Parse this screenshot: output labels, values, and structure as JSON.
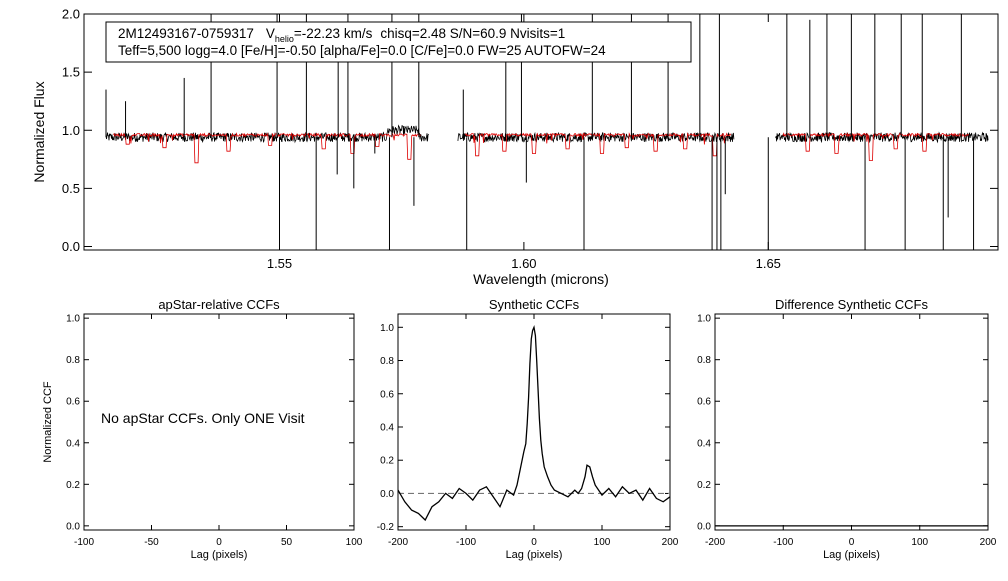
{
  "top_plot": {
    "info_line1": {
      "star_id": "2M12493167-0759317",
      "v_symbol": "V",
      "v_subscript": "helio",
      "v_value": "=-22.23 km/s",
      "rest": "chisq=2.48  S/N=60.9  Nvisits=1"
    },
    "info_line2": "Teff=5,500 logg=4.0 [Fe/H]=-0.50 [alpha/Fe]=0.0 [C/Fe]=0.0 FW=25 AUTOFW=24"
  },
  "colors": {
    "observed": "#000000",
    "model": "#dd0000",
    "zero_line": "#777777"
  },
  "chart_data": [
    {
      "type": "line",
      "xlabel": "Wavelength (microns)",
      "ylabel": "Normalized Flux",
      "xlim": [
        1.51,
        1.697
      ],
      "ylim": [
        -0.03,
        2.0
      ],
      "xticks": [
        1.55,
        1.6,
        1.65
      ],
      "xtick_labels": [
        "1.55",
        "1.60",
        "1.65"
      ],
      "yticks": [
        0.0,
        0.5,
        1.0,
        1.5,
        2.0
      ],
      "ytick_labels": [
        "0.0",
        "0.5",
        "1.0",
        "1.5",
        "2.0"
      ],
      "series": [
        {
          "segments": [
            [
              1.5145,
              1.5805
            ],
            [
              1.5865,
              1.643
            ],
            [
              1.6515,
              1.695
            ]
          ],
          "level": 0.94,
          "noise": 0.025,
          "spikes_up": [
            [
              1.5145,
              1.35
            ],
            [
              1.5185,
              1.25
            ],
            [
              1.5305,
              1.45
            ],
            [
              1.536,
              2.0
            ],
            [
              1.5495,
              2.0
            ],
            [
              1.5555,
              2.0
            ],
            [
              1.562,
              1.6
            ],
            [
              1.564,
              2.0
            ],
            [
              1.573,
              2.0
            ],
            [
              1.5785,
              2.0
            ],
            [
              1.5876,
              1.35
            ],
            [
              1.5963,
              1.6
            ],
            [
              1.5995,
              2.0
            ],
            [
              1.614,
              2.0
            ],
            [
              1.622,
              2.0
            ],
            [
              1.6295,
              2.0
            ],
            [
              1.636,
              2.0
            ],
            [
              1.64,
              2.0
            ],
            [
              1.6538,
              2.0
            ],
            [
              1.6585,
              1.95
            ],
            [
              1.662,
              2.0
            ],
            [
              1.667,
              2.0
            ],
            [
              1.6718,
              2.0
            ],
            [
              1.6772,
              2.0
            ],
            [
              1.6815,
              2.0
            ],
            [
              1.6895,
              2.0
            ]
          ],
          "spikes_down": [
            [
              1.55,
              -0.03
            ],
            [
              1.5575,
              -0.03
            ],
            [
              1.5618,
              0.62
            ],
            [
              1.5652,
              0.5
            ],
            [
              1.5695,
              0.8
            ],
            [
              1.5725,
              -0.03
            ],
            [
              1.5775,
              0.35
            ],
            [
              1.5883,
              -0.03
            ],
            [
              1.6005,
              0.55
            ],
            [
              1.6123,
              -0.03
            ],
            [
              1.6385,
              -0.03
            ],
            [
              1.6395,
              -0.03
            ],
            [
              1.6403,
              -0.03
            ],
            [
              1.6412,
              0.45
            ],
            [
              1.65,
              -0.03
            ],
            [
              1.6698,
              -0.03
            ],
            [
              1.678,
              -0.03
            ],
            [
              1.6858,
              -0.03
            ],
            [
              1.6868,
              0.25
            ],
            [
              1.692,
              -0.03
            ]
          ],
          "bump": {
            "from": 1.572,
            "to": 1.5785,
            "height": 0.06
          }
        },
        {
          "segments": [
            [
              1.516,
              1.579
            ],
            [
              1.588,
              1.6425
            ],
            [
              1.653,
              1.691
            ]
          ],
          "level": 0.96,
          "noise": 0.012,
          "lines": [
            [
              1.519,
              0.88
            ],
            [
              1.5265,
              0.85
            ],
            [
              1.533,
              0.72
            ],
            [
              1.5395,
              0.82
            ],
            [
              1.548,
              0.87
            ],
            [
              1.559,
              0.84
            ],
            [
              1.565,
              0.8
            ],
            [
              1.57,
              0.86
            ],
            [
              1.5765,
              0.75
            ],
            [
              1.5905,
              0.78
            ],
            [
              1.596,
              0.82
            ],
            [
              1.602,
              0.8
            ],
            [
              1.609,
              0.84
            ],
            [
              1.616,
              0.8
            ],
            [
              1.621,
              0.85
            ],
            [
              1.627,
              0.82
            ],
            [
              1.633,
              0.84
            ],
            [
              1.639,
              0.78
            ],
            [
              1.658,
              0.82
            ],
            [
              1.664,
              0.8
            ],
            [
              1.671,
              0.74
            ],
            [
              1.676,
              0.84
            ],
            [
              1.682,
              0.82
            ]
          ]
        }
      ]
    },
    {
      "type": "line",
      "title": "apStar-relative CCFs",
      "xlabel": "Lag (pixels)",
      "ylabel": "Normalized CCF",
      "xlim": [
        -100,
        100
      ],
      "ylim": [
        -0.02,
        1.02
      ],
      "xticks": [
        -100,
        -50,
        0,
        50,
        100
      ],
      "xtick_labels": [
        "-100",
        "-50",
        "0",
        "50",
        "100"
      ],
      "yticks": [
        0.0,
        0.2,
        0.4,
        0.6,
        0.8,
        1.0
      ],
      "ytick_labels": [
        "0.0",
        "0.2",
        "0.4",
        "0.6",
        "0.8",
        "1.0"
      ],
      "annotation": "No apStar CCFs.  Only ONE Visit",
      "series": []
    },
    {
      "type": "line",
      "title": "Synthetic CCFs",
      "xlabel": "Lag (pixels)",
      "xlim": [
        -200,
        200
      ],
      "ylim": [
        -0.22,
        1.08
      ],
      "xticks": [
        -200,
        -100,
        0,
        100,
        200
      ],
      "xtick_labels": [
        "-200",
        "-100",
        "0",
        "100",
        "200"
      ],
      "yticks": [
        -0.2,
        0.0,
        0.2,
        0.4,
        0.6,
        0.8,
        1.0
      ],
      "ytick_labels": [
        "-0.2",
        "0.0",
        "0.2",
        "0.4",
        "0.6",
        "0.8",
        "1.0"
      ],
      "reference_line": 0.0,
      "series": [
        {
          "x": [
            -200,
            -190,
            -180,
            -170,
            -160,
            -150,
            -140,
            -130,
            -120,
            -110,
            -100,
            -90,
            -80,
            -70,
            -60,
            -50,
            -40,
            -30,
            -25,
            -20,
            -15,
            -12,
            -10,
            -8,
            -6,
            -4,
            -2,
            0,
            2,
            4,
            6,
            8,
            10,
            12,
            15,
            20,
            25,
            30,
            40,
            50,
            60,
            65,
            70,
            75,
            78,
            82,
            86,
            90,
            95,
            100,
            110,
            120,
            130,
            140,
            150,
            160,
            170,
            180,
            190,
            200
          ],
          "y": [
            0.02,
            -0.05,
            -0.1,
            -0.12,
            -0.16,
            -0.08,
            -0.05,
            0.0,
            -0.03,
            0.03,
            0.0,
            -0.04,
            0.02,
            0.04,
            -0.02,
            -0.08,
            0.02,
            -0.01,
            0.05,
            0.15,
            0.25,
            0.3,
            0.42,
            0.58,
            0.78,
            0.93,
            0.98,
            1.0,
            0.95,
            0.8,
            0.62,
            0.45,
            0.32,
            0.24,
            0.16,
            0.1,
            0.05,
            0.02,
            0.0,
            -0.02,
            0.02,
            0.0,
            0.03,
            0.1,
            0.17,
            0.16,
            0.1,
            0.05,
            0.02,
            -0.01,
            0.03,
            -0.02,
            0.04,
            0.0,
            0.02,
            -0.04,
            0.03,
            -0.03,
            -0.05,
            -0.02
          ]
        }
      ]
    },
    {
      "type": "line",
      "title": "Difference Synthetic CCFs",
      "xlabel": "Lag (pixels)",
      "xlim": [
        -200,
        200
      ],
      "ylim": [
        -0.02,
        1.02
      ],
      "xticks": [
        -200,
        -100,
        0,
        100,
        200
      ],
      "xtick_labels": [
        "-200",
        "-100",
        "0",
        "100",
        "200"
      ],
      "yticks": [
        0.0,
        0.2,
        0.4,
        0.6,
        0.8,
        1.0
      ],
      "ytick_labels": [
        "0.0",
        "0.2",
        "0.4",
        "0.6",
        "0.8",
        "1.0"
      ],
      "series": []
    }
  ]
}
